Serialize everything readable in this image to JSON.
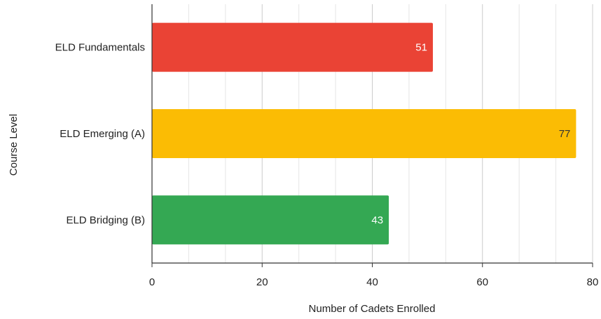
{
  "chart_data": {
    "type": "bar",
    "orientation": "horizontal",
    "categories": [
      "ELD Fundamentals",
      "ELD Emerging (A)",
      "ELD Bridging (B)"
    ],
    "values": [
      51,
      77,
      43
    ],
    "colors": [
      "#ea4335",
      "#fbbc04",
      "#34a853"
    ],
    "label_colors": [
      "#ffffff",
      "#333333",
      "#ffffff"
    ],
    "xlim": [
      0,
      80
    ],
    "xticks": [
      0,
      20,
      40,
      60,
      80
    ],
    "minor_step": 6.666667,
    "xlabel": "Number of Cadets Enrolled",
    "ylabel": "Course Level",
    "grid": true,
    "data_labels": true
  }
}
